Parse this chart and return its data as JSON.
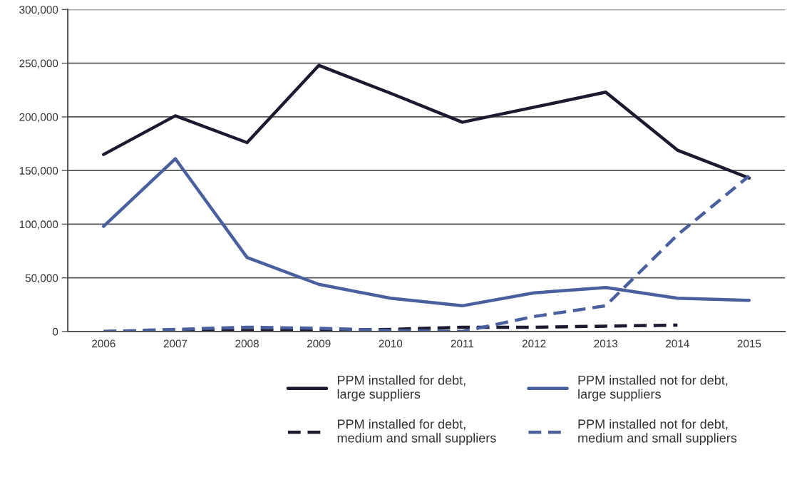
{
  "chart_data": {
    "type": "line",
    "categories": [
      "2006",
      "2007",
      "2008",
      "2009",
      "2010",
      "2011",
      "2012",
      "2013",
      "2014",
      "2015"
    ],
    "series": [
      {
        "name": "PPM installed for debt,\nlarge suppliers",
        "color": "#1b1a2e",
        "line_style": "solid",
        "values": [
          165000,
          201000,
          176000,
          248000,
          222000,
          195000,
          209000,
          223000,
          169000,
          143000
        ]
      },
      {
        "name": "PPM installed for debt,\nmedium and small suppliers",
        "color": "#1b1a2e",
        "line_style": "dashed",
        "values": [
          0,
          1000,
          1000,
          1000,
          2000,
          4000,
          4000,
          5000,
          6000,
          null
        ]
      },
      {
        "name": "PPM installed not for debt,\nlarge suppliers",
        "color": "#4a5f9e",
        "line_style": "solid",
        "values": [
          98000,
          161000,
          69000,
          44000,
          31000,
          24000,
          36000,
          41000,
          31000,
          29000
        ]
      },
      {
        "name": "PPM installed not for debt,\nmedium and small suppliers",
        "color": "#4a5f9e",
        "line_style": "dashed",
        "values": [
          0,
          2000,
          4000,
          3000,
          1000,
          0,
          14000,
          24000,
          90000,
          145000
        ]
      }
    ],
    "ylim": [
      0,
      300000
    ],
    "yticks": [
      {
        "value": 0,
        "label": "0"
      },
      {
        "value": 50000,
        "label": "50,000"
      },
      {
        "value": 100000,
        "label": "100,000"
      },
      {
        "value": 150000,
        "label": "150,000"
      },
      {
        "value": 200000,
        "label": "200,000"
      },
      {
        "value": 250000,
        "label": "250,000"
      },
      {
        "value": 300000,
        "label": "300,000"
      }
    ],
    "grid": "y",
    "legend": "bottom"
  }
}
